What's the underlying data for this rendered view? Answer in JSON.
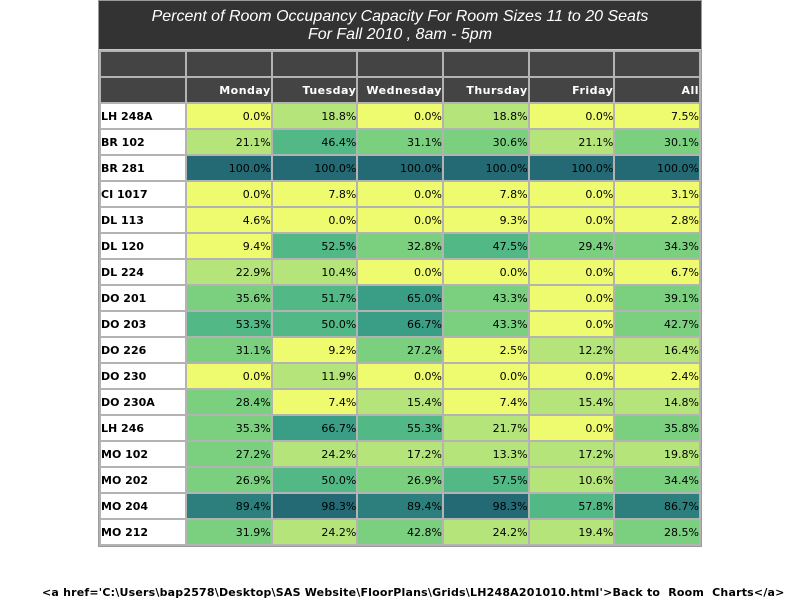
{
  "title_line1": "Percent of Room Occupancy Capacity For Room Sizes 11 to 20 Seats",
  "title_line2": "For Fall 2010  , 8am - 5pm",
  "footer_link_text": "<a href='C:\\Users\\bap2578\\Desktop\\SAS Website\\FloorPlans\\Grids\\LH248A201010.html'>Back to  Room  Charts</a>",
  "colors": {
    "title_bg": "#333333",
    "header_bg": "#444444",
    "scale": [
      "#eefb6e",
      "#b5e57a",
      "#7bd080",
      "#52b885",
      "#3a9e87",
      "#2c7f7d",
      "#236a74"
    ]
  },
  "chart_data": {
    "type": "heatmap",
    "title": "Percent of Room Occupancy Capacity For Room Sizes 11 to 20 Seats",
    "subtitle": "For Fall 2010  , 8am - 5pm",
    "columns": [
      "Monday",
      "Tuesday",
      "Wednesday",
      "Thursday",
      "Friday",
      "All"
    ],
    "unit": "%",
    "rows": [
      {
        "room": "LH 248A",
        "values": [
          0.0,
          18.8,
          0.0,
          18.8,
          0.0,
          7.5
        ]
      },
      {
        "room": "BR 102",
        "values": [
          21.1,
          46.4,
          31.1,
          30.6,
          21.1,
          30.1
        ]
      },
      {
        "room": "BR 281",
        "values": [
          100.0,
          100.0,
          100.0,
          100.0,
          100.0,
          100.0
        ]
      },
      {
        "room": "CI 1017",
        "values": [
          0.0,
          7.8,
          0.0,
          7.8,
          0.0,
          3.1
        ]
      },
      {
        "room": "DL 113",
        "values": [
          4.6,
          0.0,
          0.0,
          9.3,
          0.0,
          2.8
        ]
      },
      {
        "room": "DL 120",
        "values": [
          9.4,
          52.5,
          32.8,
          47.5,
          29.4,
          34.3
        ]
      },
      {
        "room": "DL 224",
        "values": [
          22.9,
          10.4,
          0.0,
          0.0,
          0.0,
          6.7
        ]
      },
      {
        "room": "DO 201",
        "values": [
          35.6,
          51.7,
          65.0,
          43.3,
          0.0,
          39.1
        ]
      },
      {
        "room": "DO 203",
        "values": [
          53.3,
          50.0,
          66.7,
          43.3,
          0.0,
          42.7
        ]
      },
      {
        "room": "DO 226",
        "values": [
          31.1,
          9.2,
          27.2,
          2.5,
          12.2,
          16.4
        ]
      },
      {
        "room": "DO 230",
        "values": [
          0.0,
          11.9,
          0.0,
          0.0,
          0.0,
          2.4
        ]
      },
      {
        "room": "DO 230A",
        "values": [
          28.4,
          7.4,
          15.4,
          7.4,
          15.4,
          14.8
        ]
      },
      {
        "room": "LH 246",
        "values": [
          35.3,
          66.7,
          55.3,
          21.7,
          0.0,
          35.8
        ]
      },
      {
        "room": "MO 102",
        "values": [
          27.2,
          24.2,
          17.2,
          13.3,
          17.2,
          19.8
        ]
      },
      {
        "room": "MO 202",
        "values": [
          26.9,
          50.0,
          26.9,
          57.5,
          10.6,
          34.4
        ]
      },
      {
        "room": "MO 204",
        "values": [
          89.4,
          98.3,
          89.4,
          98.3,
          57.8,
          86.7
        ]
      },
      {
        "room": "MO 212",
        "values": [
          31.9,
          24.2,
          42.8,
          24.2,
          19.4,
          28.5
        ]
      }
    ]
  }
}
